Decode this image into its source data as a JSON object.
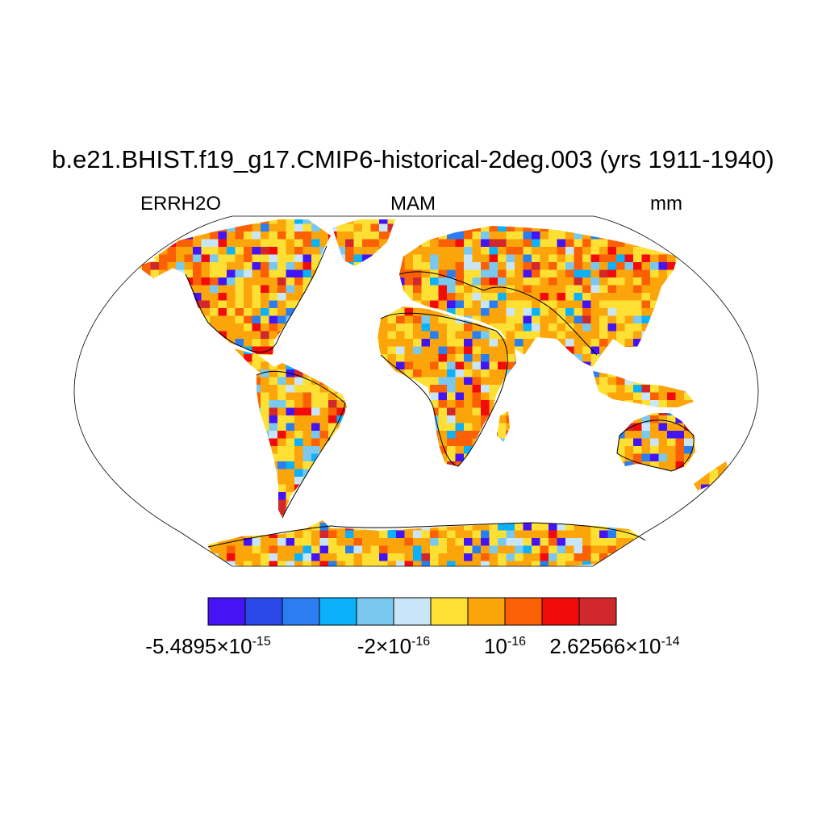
{
  "title": "b.e21.BHIST.f19_g17.CMIP6-historical-2deg.003 (yrs 1911-1940)",
  "left_label": "ERRH2O",
  "center_label": "MAM",
  "right_label": "mm",
  "colorbar": {
    "colors": [
      "#4414f4",
      "#2b49e6",
      "#2a7ef0",
      "#0bb1fa",
      "#7bc8ef",
      "#c9e6f8",
      "#fde033",
      "#fca50a",
      "#fc6004",
      "#f20b0b",
      "#d1282d"
    ],
    "labels": [
      {
        "mantissa": "-5.4895",
        "cross": "×",
        "base": "10",
        "exp": "-15"
      },
      {
        "mantissa": "-2",
        "cross": "×",
        "base": "10",
        "exp": "-16"
      },
      {
        "mantissa": "",
        "cross": "",
        "base": "10",
        "exp": "-16"
      },
      {
        "mantissa": "2.62566",
        "cross": "×",
        "base": "10",
        "exp": "-14"
      }
    ]
  },
  "map": {
    "projection": "Robinson",
    "ocean_color": "#ffffff",
    "coastline_color": "#000000"
  }
}
